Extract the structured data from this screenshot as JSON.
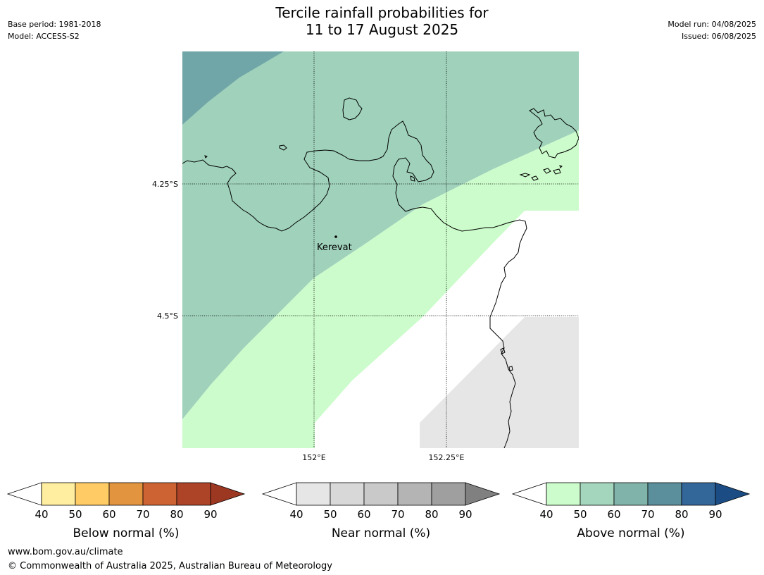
{
  "title": {
    "line1": "Tercile rainfall probabilities for",
    "line2": "11 to 17 August 2025"
  },
  "meta_left": {
    "base_period": "Base period: 1981-2018",
    "model": "Model: ACCESS-S2"
  },
  "meta_right": {
    "model_run": "Model run: 04/08/2025",
    "issued": "Issued: 06/08/2025"
  },
  "map": {
    "lat_labels": [
      "4.25°S",
      "4.5°S"
    ],
    "lon_labels": [
      "152°E",
      "152.25°E"
    ],
    "place_label": "Kerevat",
    "fill_colors": {
      "above_50_60": "#9fd1bb",
      "above_60_70": "#71a6a9",
      "above_40_50": "#ccfccb",
      "near_40_50": "#e6e6e6",
      "no_signal": "#ffffff"
    }
  },
  "colorbars": [
    {
      "label": "Below normal (%)",
      "ticks": [
        "40",
        "50",
        "60",
        "70",
        "80",
        "90"
      ],
      "colors": [
        "#ffffff",
        "#ffeda0",
        "#fecb64",
        "#e2943f",
        "#cd6233",
        "#ae4427",
        "#9c3722"
      ]
    },
    {
      "label": "Near normal (%)",
      "ticks": [
        "40",
        "50",
        "60",
        "70",
        "80",
        "90"
      ],
      "colors": [
        "#ffffff",
        "#e6e6e6",
        "#d8d8d8",
        "#c9c9c9",
        "#b4b4b4",
        "#9f9f9f",
        "#808080"
      ]
    },
    {
      "label": "Above normal (%)",
      "ticks": [
        "40",
        "50",
        "60",
        "70",
        "80",
        "90"
      ],
      "colors": [
        "#ffffff",
        "#ccfccb",
        "#a3d6bc",
        "#80b3aa",
        "#5a8f9b",
        "#336699",
        "#1b4d84"
      ]
    }
  ],
  "footer": {
    "url": "www.bom.gov.au/climate",
    "copyright": "© Commonwealth of Australia 2025, Australian Bureau of Meteorology"
  }
}
